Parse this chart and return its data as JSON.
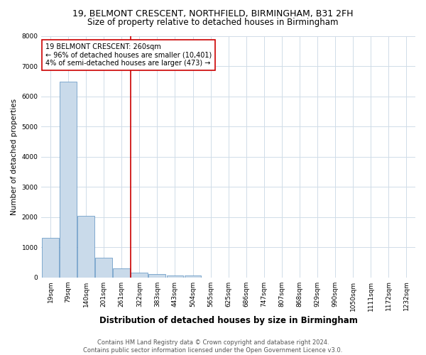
{
  "title": "19, BELMONT CRESCENT, NORTHFIELD, BIRMINGHAM, B31 2FH",
  "subtitle": "Size of property relative to detached houses in Birmingham",
  "xlabel": "Distribution of detached houses by size in Birmingham",
  "ylabel": "Number of detached properties",
  "categories": [
    "19sqm",
    "79sqm",
    "140sqm",
    "201sqm",
    "261sqm",
    "322sqm",
    "383sqm",
    "443sqm",
    "504sqm",
    "565sqm",
    "625sqm",
    "686sqm",
    "747sqm",
    "807sqm",
    "868sqm",
    "929sqm",
    "990sqm",
    "1050sqm",
    "1111sqm",
    "1172sqm",
    "1232sqm"
  ],
  "values": [
    1300,
    6500,
    2050,
    650,
    300,
    150,
    100,
    60,
    60,
    0,
    0,
    0,
    0,
    0,
    0,
    0,
    0,
    0,
    0,
    0,
    0
  ],
  "bar_color": "#c9daea",
  "bar_edge_color": "#5a8fc0",
  "grid_color": "#d0dce8",
  "background_color": "#ffffff",
  "red_line_index": 4,
  "red_line_color": "#cc0000",
  "annotation_text": "19 BELMONT CRESCENT: 260sqm\n← 96% of detached houses are smaller (10,401)\n4% of semi-detached houses are larger (473) →",
  "annotation_box_color": "#ffffff",
  "annotation_border_color": "#cc0000",
  "ylim": [
    0,
    8000
  ],
  "yticks": [
    0,
    1000,
    2000,
    3000,
    4000,
    5000,
    6000,
    7000,
    8000
  ],
  "footer": "Contains HM Land Registry data © Crown copyright and database right 2024.\nContains public sector information licensed under the Open Government Licence v3.0.",
  "title_fontsize": 9,
  "subtitle_fontsize": 8.5,
  "xlabel_fontsize": 8.5,
  "ylabel_fontsize": 7.5,
  "tick_fontsize": 6.5,
  "annotation_fontsize": 7,
  "footer_fontsize": 6
}
